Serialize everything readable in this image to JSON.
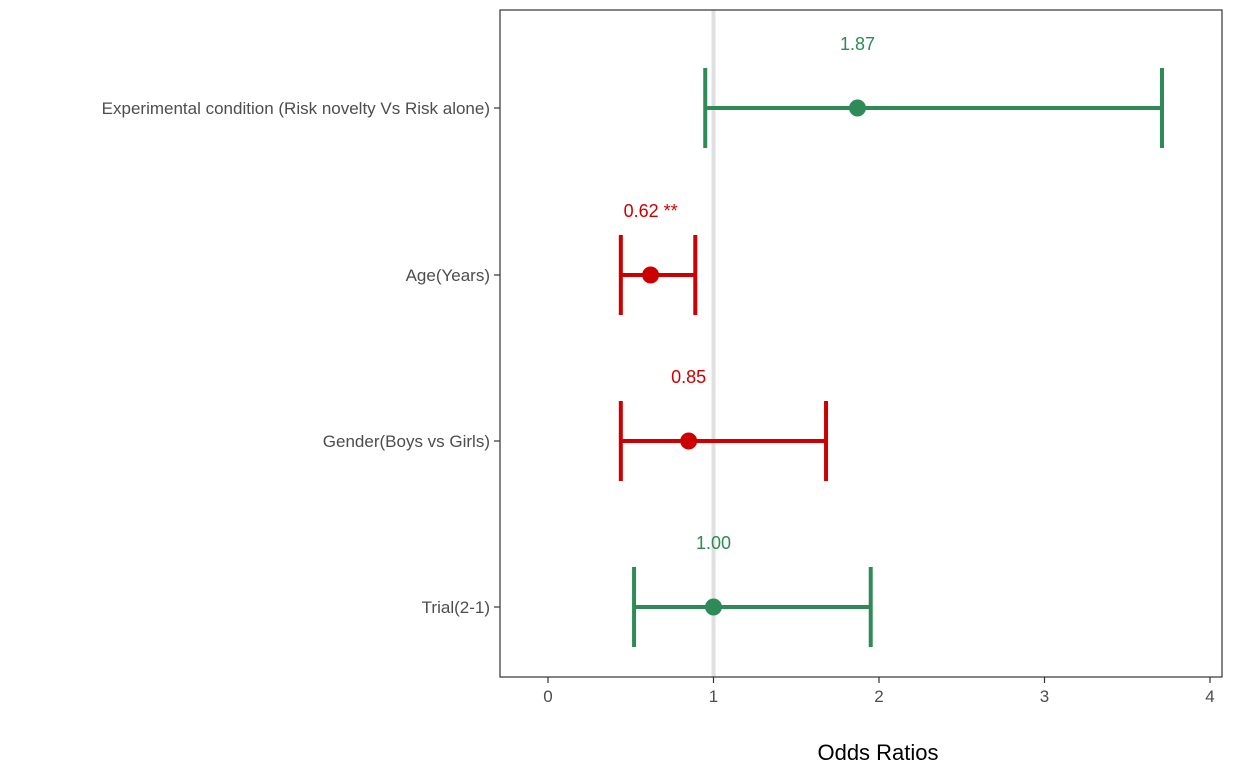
{
  "chart_data": {
    "type": "forest",
    "xlabel": "Odds Ratios",
    "xlim": [
      -0.3,
      4.05
    ],
    "x_ticks": [
      0,
      1,
      2,
      3,
      4
    ],
    "x_tick_labels": [
      "0",
      "1",
      "2",
      "3",
      "4"
    ],
    "reference_line": 1,
    "grid": false,
    "legend": "none",
    "colors": {
      "positive": "#2e8b57",
      "negative": "#cc0000",
      "reference": "#e0e0e0"
    },
    "rows": [
      {
        "term": "Experimental condition (Risk novelty Vs Risk alone)",
        "estimate": 1.87,
        "ci_low": 0.95,
        "ci_high": 3.71,
        "label": "1.87",
        "direction": "positive"
      },
      {
        "term": "Age(Years)",
        "estimate": 0.62,
        "ci_low": 0.44,
        "ci_high": 0.89,
        "label": "0.62 **",
        "direction": "negative"
      },
      {
        "term": "Gender(Boys vs Girls)",
        "estimate": 0.85,
        "ci_low": 0.44,
        "ci_high": 1.68,
        "label": "0.85",
        "direction": "negative"
      },
      {
        "term": "Trial(2-1)",
        "estimate": 1.0,
        "ci_low": 0.52,
        "ci_high": 1.95,
        "label": "1.00",
        "direction": "positive"
      }
    ]
  }
}
